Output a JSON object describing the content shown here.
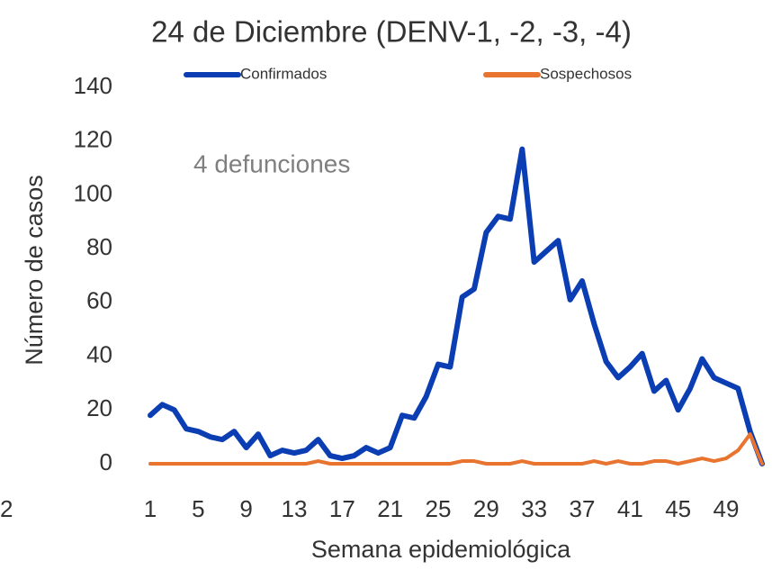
{
  "chart_data": {
    "type": "line",
    "title": "24 de Diciembre (DENV-1, -2, -3, -4)",
    "annotation": "4 defunciones",
    "x_label": "Semana epidemiológica",
    "y_label": "Número de casos",
    "cropped_label": "2",
    "x": [
      1,
      2,
      3,
      4,
      5,
      6,
      7,
      8,
      9,
      10,
      11,
      12,
      13,
      14,
      15,
      16,
      17,
      18,
      19,
      20,
      21,
      22,
      23,
      24,
      25,
      26,
      27,
      28,
      29,
      30,
      31,
      32,
      33,
      34,
      35,
      36,
      37,
      38,
      39,
      40,
      41,
      42,
      43,
      44,
      45,
      46,
      47,
      48,
      49,
      50,
      51,
      52
    ],
    "series": [
      {
        "name": "Confirmados",
        "color": "#0b3db3",
        "values": [
          18,
          22,
          20,
          13,
          12,
          10,
          9,
          12,
          6,
          11,
          3,
          5,
          4,
          5,
          9,
          3,
          2,
          3,
          6,
          4,
          6,
          18,
          17,
          25,
          37,
          36,
          62,
          65,
          86,
          92,
          91,
          117,
          75,
          79,
          83,
          61,
          68,
          52,
          38,
          32,
          36,
          41,
          27,
          31,
          20,
          28,
          39,
          32,
          30,
          28,
          12,
          0
        ]
      },
      {
        "name": "Sospechosos",
        "color": "#e8742f",
        "values": [
          0,
          0,
          0,
          0,
          0,
          0,
          0,
          0,
          0,
          0,
          0,
          0,
          0,
          0,
          1,
          0,
          0,
          0,
          0,
          0,
          0,
          0,
          0,
          0,
          0,
          0,
          1,
          1,
          0,
          0,
          0,
          1,
          0,
          0,
          0,
          0,
          0,
          1,
          0,
          1,
          0,
          0,
          1,
          1,
          0,
          1,
          2,
          1,
          2,
          5,
          11,
          0
        ]
      }
    ],
    "xlim": [
      1,
      52
    ],
    "xticks": [
      1,
      5,
      9,
      13,
      17,
      21,
      25,
      29,
      33,
      37,
      41,
      45,
      49
    ],
    "ylim": [
      0,
      140
    ],
    "yticks": [
      0,
      20,
      40,
      60,
      80,
      100,
      120,
      140
    ],
    "legend": "top"
  }
}
